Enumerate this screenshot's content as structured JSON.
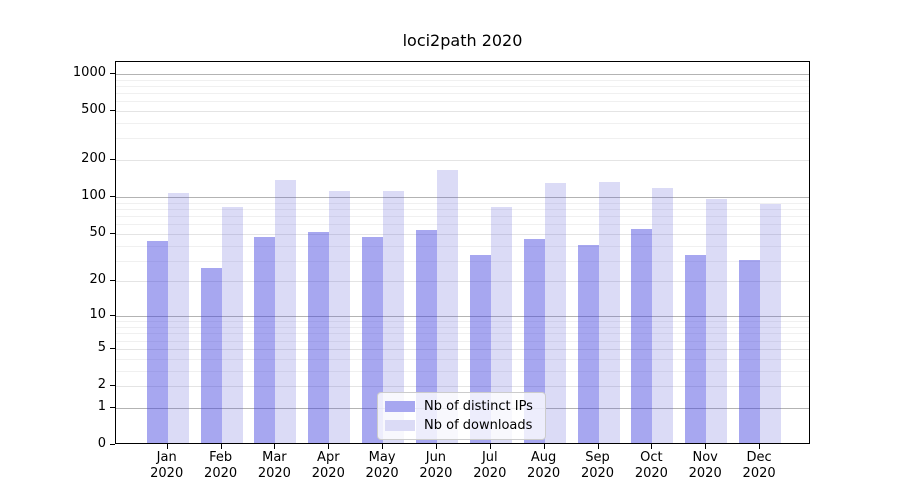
{
  "chart_data": {
    "type": "bar",
    "title": "loci2path 2020",
    "categories": [
      "Jan",
      "Feb",
      "Mar",
      "Apr",
      "May",
      "Jun",
      "Jul",
      "Aug",
      "Sep",
      "Oct",
      "Nov",
      "Dec"
    ],
    "category_year": "2020",
    "series": [
      {
        "name": "Nb of distinct IPs",
        "color": "#a7a7f0",
        "fill": "rgba(59,59,222,0.45)",
        "values": [
          42,
          25,
          45,
          50,
          45,
          52,
          32,
          44,
          39,
          53,
          32,
          29
        ]
      },
      {
        "name": "Nb of downloads",
        "color": "#dbdbf6",
        "fill": "rgba(91,91,214,0.22)",
        "values": [
          105,
          80,
          134,
          108,
          109,
          160,
          80,
          125,
          129,
          114,
          93,
          84
        ]
      }
    ],
    "yscale": "log10(1+x)",
    "y_ticks": [
      0,
      1,
      2,
      5,
      10,
      20,
      50,
      100,
      200,
      500,
      1000
    ],
    "ylim": [
      0,
      1250
    ],
    "grid": "horizontal",
    "legend_position": "lower-center-inside"
  },
  "colors": {
    "grid_major": "#b3b3b3",
    "grid_mid": "#e4e4e4",
    "grid_minor": "#f0f0f0",
    "axis": "#000000",
    "legend_border": "#cccccc",
    "text": "#000000"
  }
}
